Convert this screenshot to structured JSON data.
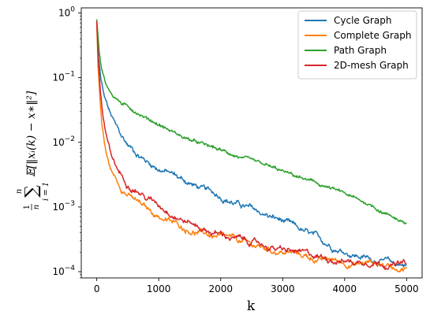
{
  "chart_data": {
    "type": "line",
    "xlabel": "k",
    "ylabel": "1/n Σ_{i=1}^{n} 𝔼[‖x_i(k) − x_*‖²]",
    "ylabel_parts": {
      "frac_num": "1",
      "frac_den": "n",
      "sum": "∑",
      "upper": "n",
      "lower": "i = 1",
      "expr": "𝔼[‖xᵢ(k) − x∗‖²]"
    },
    "xlim": [
      -250,
      5250
    ],
    "ylim": [
      8e-05,
      1.2
    ],
    "yscale": "log",
    "grid": false,
    "legend_position": "top-right",
    "xticks": [
      {
        "value": 0,
        "label": "0"
      },
      {
        "value": 1000,
        "label": "1000"
      },
      {
        "value": 2000,
        "label": "2000"
      },
      {
        "value": 3000,
        "label": "3000"
      },
      {
        "value": 4000,
        "label": "4000"
      },
      {
        "value": 5000,
        "label": "5000"
      }
    ],
    "yticks": [
      {
        "value": 0.0001,
        "base": "10",
        "exp": "−4"
      },
      {
        "value": 0.001,
        "base": "10",
        "exp": "−3"
      },
      {
        "value": 0.01,
        "base": "10",
        "exp": "−2"
      },
      {
        "value": 0.1,
        "base": "10",
        "exp": "−1"
      },
      {
        "value": 1,
        "base": "10",
        "exp": "0"
      }
    ],
    "series": [
      {
        "name": "Cycle Graph",
        "color": "#1f77b4",
        "points": [
          [
            0,
            0.75
          ],
          [
            30,
            0.2
          ],
          [
            70,
            0.09
          ],
          [
            120,
            0.05
          ],
          [
            200,
            0.03
          ],
          [
            300,
            0.018
          ],
          [
            400,
            0.012
          ],
          [
            500,
            0.009
          ],
          [
            600,
            0.0075
          ],
          [
            700,
            0.0062
          ],
          [
            800,
            0.0052
          ],
          [
            900,
            0.0045
          ],
          [
            1000,
            0.004
          ],
          [
            1200,
            0.0033
          ],
          [
            1400,
            0.0026
          ],
          [
            1600,
            0.0021
          ],
          [
            1800,
            0.0017
          ],
          [
            2000,
            0.0015
          ],
          [
            2200,
            0.0012
          ],
          [
            2400,
            0.001
          ],
          [
            2600,
            0.00083
          ],
          [
            2800,
            0.0007
          ],
          [
            3000,
            0.0006
          ],
          [
            3200,
            0.00047
          ],
          [
            3400,
            0.00038
          ],
          [
            3600,
            0.0003
          ],
          [
            3800,
            0.00025
          ],
          [
            4000,
            0.00021
          ],
          [
            4200,
            0.00018
          ],
          [
            4400,
            0.00016
          ],
          [
            4600,
            0.00015
          ],
          [
            4800,
            0.00013
          ],
          [
            5000,
            0.00013
          ]
        ]
      },
      {
        "name": "Complete Graph",
        "color": "#ff7f0e",
        "points": [
          [
            0,
            0.75
          ],
          [
            20,
            0.15
          ],
          [
            50,
            0.05
          ],
          [
            80,
            0.02
          ],
          [
            120,
            0.01
          ],
          [
            170,
            0.0055
          ],
          [
            250,
            0.0033
          ],
          [
            350,
            0.0023
          ],
          [
            450,
            0.0018
          ],
          [
            600,
            0.0013
          ],
          [
            800,
            0.00092
          ],
          [
            1000,
            0.00072
          ],
          [
            1200,
            0.00058
          ],
          [
            1400,
            0.00048
          ],
          [
            1600,
            0.00042
          ],
          [
            1800,
            0.00037
          ],
          [
            2000,
            0.00033
          ],
          [
            2200,
            0.0003
          ],
          [
            2400,
            0.00027
          ],
          [
            2600,
            0.00024
          ],
          [
            2800,
            0.00022
          ],
          [
            3000,
            0.0002
          ],
          [
            3200,
            0.00019
          ],
          [
            3400,
            0.00017
          ],
          [
            3600,
            0.00015
          ],
          [
            3800,
            0.00015
          ],
          [
            4000,
            0.00014
          ],
          [
            4200,
            0.00013
          ],
          [
            4400,
            0.00014
          ],
          [
            4600,
            0.00013
          ],
          [
            4800,
            0.00012
          ],
          [
            5000,
            0.00012
          ]
        ]
      },
      {
        "name": "Path Graph",
        "color": "#2ca02c",
        "points": [
          [
            0,
            0.8
          ],
          [
            40,
            0.25
          ],
          [
            80,
            0.13
          ],
          [
            150,
            0.08
          ],
          [
            250,
            0.055
          ],
          [
            400,
            0.04
          ],
          [
            600,
            0.031
          ],
          [
            800,
            0.024
          ],
          [
            1000,
            0.019
          ],
          [
            1200,
            0.015
          ],
          [
            1400,
            0.012
          ],
          [
            1600,
            0.01
          ],
          [
            1800,
            0.0087
          ],
          [
            2000,
            0.0075
          ],
          [
            2200,
            0.0064
          ],
          [
            2400,
            0.0055
          ],
          [
            2600,
            0.0047
          ],
          [
            2800,
            0.0041
          ],
          [
            3000,
            0.0035
          ],
          [
            3200,
            0.003
          ],
          [
            3400,
            0.0026
          ],
          [
            3600,
            0.0022
          ],
          [
            3800,
            0.0019
          ],
          [
            4000,
            0.0016
          ],
          [
            4200,
            0.0013
          ],
          [
            4400,
            0.0011
          ],
          [
            4600,
            0.00085
          ],
          [
            4800,
            0.0007
          ],
          [
            5000,
            0.00055
          ]
        ]
      },
      {
        "name": "2D-mesh Graph",
        "color": "#d62728",
        "points": [
          [
            0,
            0.75
          ],
          [
            25,
            0.18
          ],
          [
            60,
            0.06
          ],
          [
            100,
            0.025
          ],
          [
            150,
            0.012
          ],
          [
            220,
            0.0065
          ],
          [
            300,
            0.0043
          ],
          [
            400,
            0.003
          ],
          [
            500,
            0.0024
          ],
          [
            650,
            0.0019
          ],
          [
            800,
            0.0014
          ],
          [
            1000,
            0.0011
          ],
          [
            1200,
            0.00085
          ],
          [
            1400,
            0.00065
          ],
          [
            1600,
            0.00052
          ],
          [
            1800,
            0.00043
          ],
          [
            2000,
            0.00038
          ],
          [
            2200,
            0.00033
          ],
          [
            2400,
            0.0003
          ],
          [
            2600,
            0.00027
          ],
          [
            2800,
            0.00024
          ],
          [
            3000,
            0.00021
          ],
          [
            3200,
            0.0002
          ],
          [
            3400,
            0.00018
          ],
          [
            3600,
            0.00017
          ],
          [
            3800,
            0.00016
          ],
          [
            4000,
            0.00015
          ],
          [
            4200,
            0.00014
          ],
          [
            4400,
            0.00015
          ],
          [
            4600,
            0.00014
          ],
          [
            4800,
            0.00013
          ],
          [
            5000,
            0.00013
          ]
        ]
      }
    ]
  }
}
